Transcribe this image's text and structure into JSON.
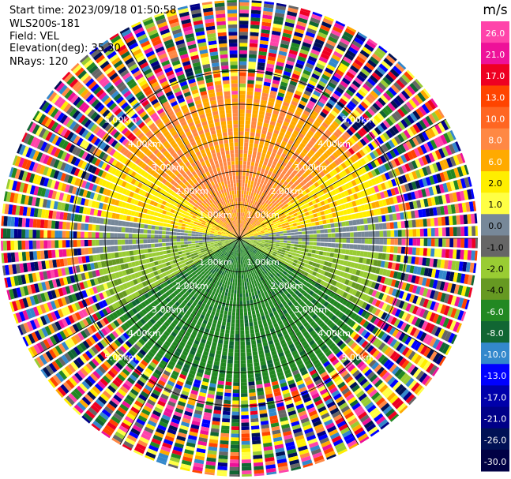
{
  "header": {
    "start_time": "Start time: 2023/09/18 01:50:58",
    "instrument": "WLS200s-181",
    "field": "Field: VEL",
    "elevation": "Elevation(deg): 35.30",
    "nrays": "NRays: 120"
  },
  "chart_data": {
    "type": "heatmap",
    "projection": "polar-ppi",
    "title": "",
    "nrays": 120,
    "range_rings_km": [
      1,
      2,
      3,
      4,
      5
    ],
    "ring_labels": {
      "upper_left": [
        "1.00km",
        "2.00km",
        "3.00km",
        "4.00km",
        "5.00km"
      ],
      "upper_right": [
        "1.00km",
        "2.00km",
        "3.00km",
        "4.00km",
        "5.00km"
      ],
      "lower_left": [
        "1.00km",
        "2.00km",
        "3.00km",
        "4.00km",
        "5.00km"
      ],
      "lower_right": [
        "1.00km",
        "2.00km",
        "3.00km",
        "4.00km",
        "5.00km"
      ]
    },
    "max_range_km": 7.0,
    "colorbar": {
      "unit": "m/s",
      "ticks": [
        "26.0",
        "21.0",
        "17.0",
        "13.0",
        "10.0",
        "8.0",
        "6.0",
        "2.0",
        "1.0",
        "0.0",
        "-1.0",
        "-2.0",
        "-4.0",
        "-6.0",
        "-8.0",
        "-10.0",
        "-13.0",
        "-17.0",
        "-21.0",
        "-26.0",
        "-30.0"
      ],
      "colors": [
        "#ff44aa",
        "#ee1199",
        "#ee0022",
        "#ff4400",
        "#ff6622",
        "#ff8844",
        "#ffaa00",
        "#ffee00",
        "#ffff44",
        "#778899",
        "#666666",
        "#99cc33",
        "#669922",
        "#228822",
        "#116633",
        "#3388cc",
        "#0000ff",
        "#0000aa",
        "#000088",
        "#001155",
        "#000044"
      ]
    },
    "pattern": {
      "approaching_color_sector": "north",
      "receding_color_sector": "south",
      "near_zero_band": "east-west"
    }
  }
}
